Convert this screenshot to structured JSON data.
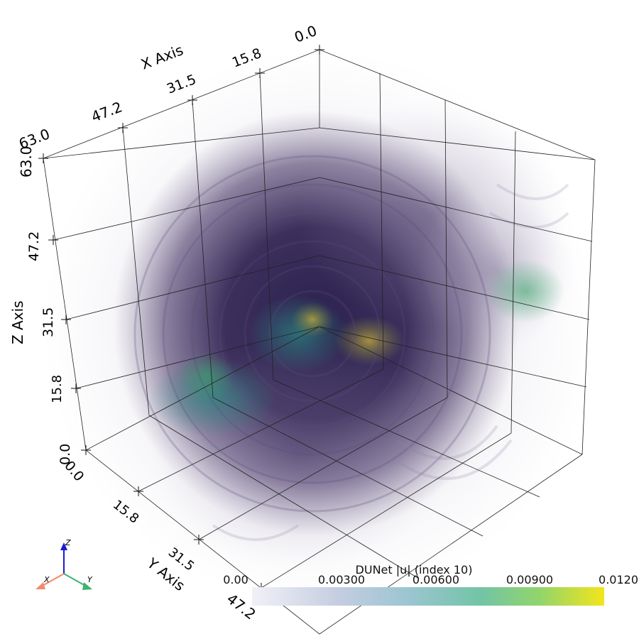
{
  "axes": {
    "x": {
      "title": "X Axis",
      "ticks": [
        "0.0",
        "15.8",
        "31.5",
        "47.2",
        "63.0"
      ]
    },
    "y": {
      "title": "Y Axis",
      "ticks": [
        "0.0",
        "15.8",
        "31.5",
        "47.2"
      ]
    },
    "z": {
      "title": "Z Axis",
      "ticks": [
        "0.0",
        "15.8",
        "31.5",
        "47.2",
        "63.0"
      ]
    }
  },
  "orientation_widget": {
    "x": "X",
    "y": "Y",
    "z": "Z",
    "colors": {
      "x": "#f08a6a",
      "y": "#3cb371",
      "z": "#1a1ad6"
    }
  },
  "colorbar": {
    "title": "DUNet |u| (index 10)",
    "tick_labels": [
      "0.00",
      "0.00300",
      "0.00600",
      "0.00900",
      "0.0120"
    ],
    "range": [
      0.0,
      0.012
    ],
    "colormap": "viridis",
    "stops": [
      "#f2f0f7",
      "#b9c8dd",
      "#8fc4c9",
      "#6fc6a6",
      "#92d46a",
      "#f2e51b"
    ]
  },
  "volume": {
    "dominant_color": "#3b1f57",
    "highlight_colors": [
      "#2c7f7a",
      "#3aa36b",
      "#c9b03a"
    ]
  }
}
